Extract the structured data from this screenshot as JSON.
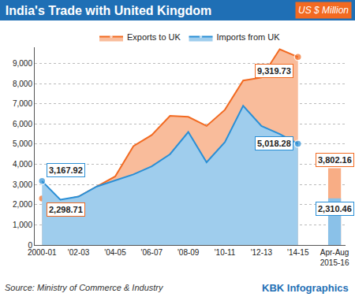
{
  "chart_data": {
    "type": "area",
    "title": "India's Trade with United Kingdom",
    "subtitle": "US $ Million",
    "annotations": [
      "Source: Ministry of Commerce & Industry",
      "KBK Infographics"
    ],
    "categories": [
      "2000-01",
      null,
      "'02-03",
      null,
      "'04-05",
      null,
      "'06-07",
      null,
      "'08-09",
      null,
      "'10-11",
      null,
      "'12-13",
      null,
      "'14-15",
      null,
      "Apr-Aug\n2015-16"
    ],
    "series": [
      {
        "name": "Exports to UK",
        "type": "area",
        "color": "#f26a21",
        "values": [
          2298.71,
          2200,
          2400,
          2900,
          3400,
          4900,
          5450,
          6400,
          6350,
          5900,
          6700,
          8150,
          8300,
          9700,
          9319.73,
          null,
          null
        ],
        "value_labels": [
          "2,298.71",
          null,
          null,
          null,
          null,
          null,
          null,
          null,
          null,
          null,
          null,
          null,
          null,
          null,
          "9,319.73",
          null,
          null
        ]
      },
      {
        "name": "Imports from UK",
        "type": "area",
        "color": "#2a8fd6",
        "values": [
          3167.92,
          2250,
          2400,
          2900,
          3200,
          3500,
          3900,
          4500,
          5600,
          4100,
          5100,
          6900,
          5900,
          5500,
          5018.28,
          null,
          null
        ],
        "value_labels": [
          "3,167.92",
          null,
          null,
          null,
          null,
          null,
          null,
          null,
          null,
          null,
          null,
          null,
          null,
          null,
          "5,018.28",
          null,
          null
        ]
      },
      {
        "name": "Exports to UK",
        "type": "bar",
        "color": "#f26a21",
        "values": [
          null,
          null,
          null,
          null,
          null,
          null,
          null,
          null,
          null,
          null,
          null,
          null,
          null,
          null,
          null,
          null,
          3802.16
        ],
        "value_labels": [
          null,
          null,
          null,
          null,
          null,
          null,
          null,
          null,
          null,
          null,
          null,
          null,
          null,
          null,
          null,
          null,
          "3,802.16"
        ]
      },
      {
        "name": "Imports from UK",
        "type": "bar",
        "color": "#2a8fd6",
        "values": [
          null,
          null,
          null,
          null,
          null,
          null,
          null,
          null,
          null,
          null,
          null,
          null,
          null,
          null,
          null,
          null,
          2310.46
        ],
        "value_labels": [
          null,
          null,
          null,
          null,
          null,
          null,
          null,
          null,
          null,
          null,
          null,
          null,
          null,
          null,
          null,
          null,
          "2,310.46"
        ]
      }
    ],
    "ylim": [
      0,
      9800
    ],
    "yticks": [
      0,
      {
        "value": 1000,
        "label": "1,000"
      },
      {
        "value": 2000,
        "label": "2,000"
      },
      {
        "value": 3000,
        "label": "3,000"
      },
      {
        "value": 4000,
        "label": "4,000"
      },
      {
        "value": 5000,
        "label": "5,000"
      },
      {
        "value": 6000,
        "label": "6,000"
      },
      {
        "value": 7000,
        "label": "7,000"
      },
      {
        "value": 8000,
        "label": "8,000"
      },
      {
        "value": 9000,
        "label": "9,000"
      }
    ],
    "grid": true,
    "legend": "top",
    "data_labels": true
  }
}
